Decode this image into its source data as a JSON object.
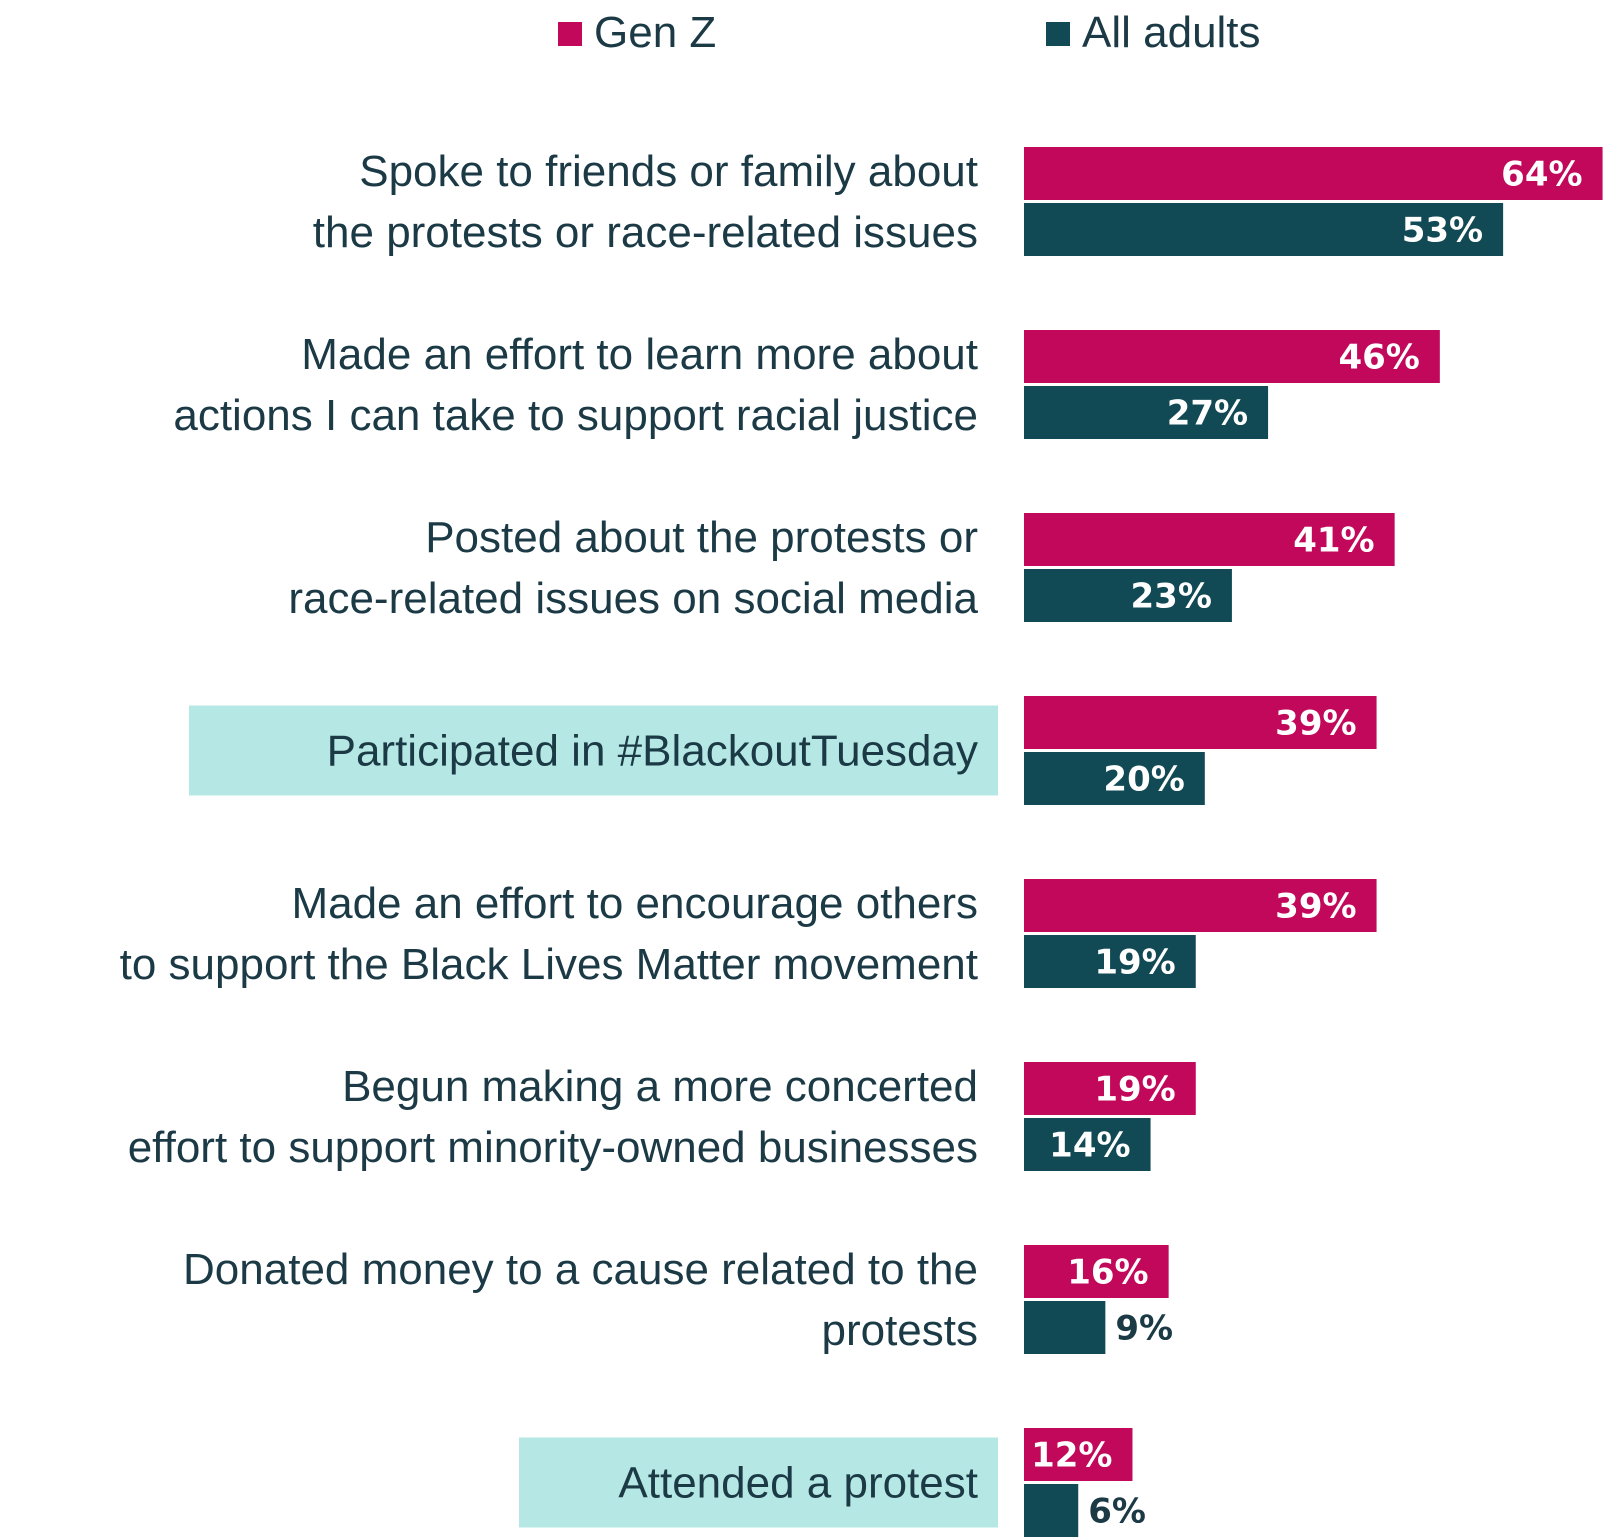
{
  "chart_data": {
    "type": "bar",
    "orientation": "horizontal",
    "title": "",
    "xlabel": "",
    "ylabel": "",
    "xlim": [
      0,
      64
    ],
    "grid": false,
    "legend_position": "top",
    "unit": "%",
    "categories": [
      [
        "Spoke to friends or family about",
        "the protests or race-related issues"
      ],
      [
        "Made an effort to learn more about",
        "actions I can take to support racial justice"
      ],
      [
        "Posted about the protests or",
        "race-related issues on social media"
      ],
      [
        "Participated in #BlackoutTuesday"
      ],
      [
        "Made an effort to encourage others",
        "to support the Black Lives Matter movement"
      ],
      [
        "Begun making a more concerted",
        "effort to support minority-owned businesses"
      ],
      [
        "Donated money to a cause related to the",
        "protests"
      ],
      [
        "Attended a protest"
      ]
    ],
    "highlighted_categories": [
      3,
      7
    ],
    "series": [
      {
        "name": "Gen Z",
        "color": "#c2085a",
        "values": [
          64,
          46,
          41,
          39,
          39,
          19,
          16,
          12
        ]
      },
      {
        "name": "All adults",
        "color": "#114a54",
        "values": [
          53,
          27,
          23,
          20,
          19,
          14,
          9,
          6
        ]
      }
    ],
    "colors": {
      "label_text": "#1b3a45",
      "highlight_fill": "#b5e8e5",
      "value_text_inside": "#ffffff",
      "value_text_outside": "#1b3a45"
    }
  }
}
